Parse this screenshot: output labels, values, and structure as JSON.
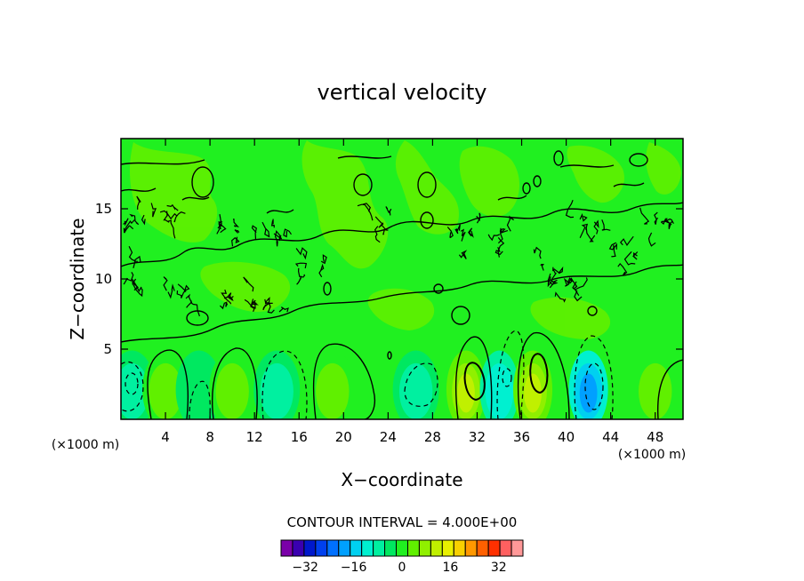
{
  "chart_data": {
    "type": "heatmap",
    "title": "vertical velocity",
    "xlabel": "X−coordinate",
    "ylabel": "Z−coordinate",
    "x_unit": "(×1000 m)",
    "z_unit": "(×1000 m)",
    "xlim": [
      0,
      50.5
    ],
    "ylim": [
      0,
      20
    ],
    "x_ticks": [
      4,
      8,
      12,
      16,
      20,
      24,
      28,
      32,
      36,
      40,
      44,
      48
    ],
    "x_tick_labels": [
      "4",
      "8",
      "12",
      "16",
      "20",
      "24",
      "28",
      "32",
      "36",
      "40",
      "44",
      "48"
    ],
    "y_ticks": [
      5,
      10,
      15
    ],
    "y_tick_labels": [
      "5",
      "10",
      "15"
    ],
    "contour_interval_label": "CONTOUR INTERVAL = 4.000E+00",
    "contour_interval": 4,
    "colorbar": {
      "ticks": [
        -32,
        -16,
        0,
        16,
        32
      ],
      "tick_labels": [
        "−32",
        "−16",
        "0",
        "16",
        "32"
      ],
      "levels": [
        -40,
        -36,
        -32,
        -28,
        -24,
        -20,
        -16,
        -12,
        -8,
        -4,
        0,
        4,
        8,
        12,
        16,
        20,
        24,
        28,
        32,
        36,
        40
      ],
      "colors": [
        "#7a00a8",
        "#3a00b0",
        "#0018cc",
        "#0040ee",
        "#0070ff",
        "#00a0ff",
        "#00d0f0",
        "#00f0d0",
        "#00f0a0",
        "#00e860",
        "#20f020",
        "#60f000",
        "#90f000",
        "#c0f000",
        "#e8f000",
        "#f8d000",
        "#ff9800",
        "#ff6000",
        "#ff3000",
        "#ff6060",
        "#ff9898"
      ]
    },
    "cells": [
      {
        "x": 1.0,
        "z": 2.5,
        "value": -6
      },
      {
        "x": 4.0,
        "z": 2.5,
        "value": 6
      },
      {
        "x": 7.0,
        "z": 2.5,
        "value": -3
      },
      {
        "x": 10.0,
        "z": 2.5,
        "value": 5
      },
      {
        "x": 14.0,
        "z": 2.5,
        "value": -7
      },
      {
        "x": 19.0,
        "z": 2.5,
        "value": 6
      },
      {
        "x": 26.5,
        "z": 2.5,
        "value": -6
      },
      {
        "x": 31.0,
        "z": 2.5,
        "value": 14
      },
      {
        "x": 34.0,
        "z": 2.5,
        "value": -12
      },
      {
        "x": 37.0,
        "z": 2.5,
        "value": 13
      },
      {
        "x": 42.0,
        "z": 2.5,
        "value": -20
      },
      {
        "x": 48.0,
        "z": 2.5,
        "value": 5
      }
    ]
  }
}
